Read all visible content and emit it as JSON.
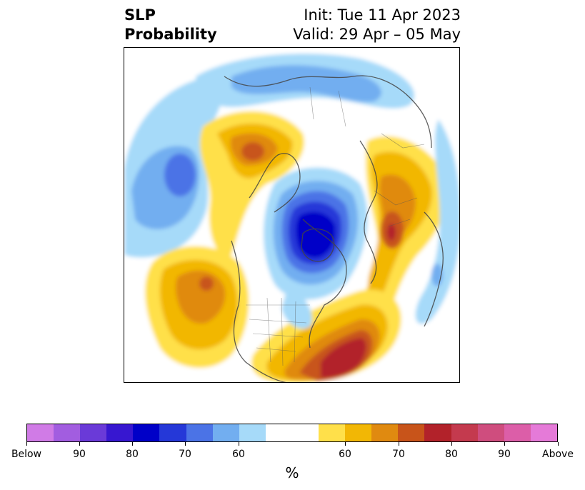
{
  "header": {
    "left_line1": "SLP",
    "left_line2": "Probability",
    "right_line1": "Init: Tue 11 Apr 2023",
    "right_line2": "Valid: 29 Apr – 05 May"
  },
  "colorbar": {
    "unit": "%",
    "colors": [
      "#d07be6",
      "#a25de0",
      "#6a3ad8",
      "#3717d0",
      "#0000c8",
      "#2538d8",
      "#4b73e6",
      "#72aef0",
      "#a6daf9",
      "#ffffff",
      "#ffffff",
      "#ffe04a",
      "#f2b705",
      "#e08a10",
      "#c8541a",
      "#b2222a",
      "#c43a4e",
      "#cf4d7e",
      "#dc5ea8",
      "#e57ad8"
    ],
    "ticks": [
      "Below",
      "90",
      "80",
      "70",
      "60",
      "60",
      "70",
      "80",
      "90",
      "Above"
    ]
  },
  "map": {
    "projection": "north-polar-stereographic",
    "palette": {
      "blue_light": "#a6daf9",
      "blue_med": "#72aef0",
      "blue": "#4b73e6",
      "blue_deep": "#2538d8",
      "blue_core": "#0000c8",
      "yellow": "#ffe04a",
      "gold": "#f2b705",
      "orange": "#e08a10",
      "rust": "#c8541a",
      "red": "#b2222a"
    }
  }
}
